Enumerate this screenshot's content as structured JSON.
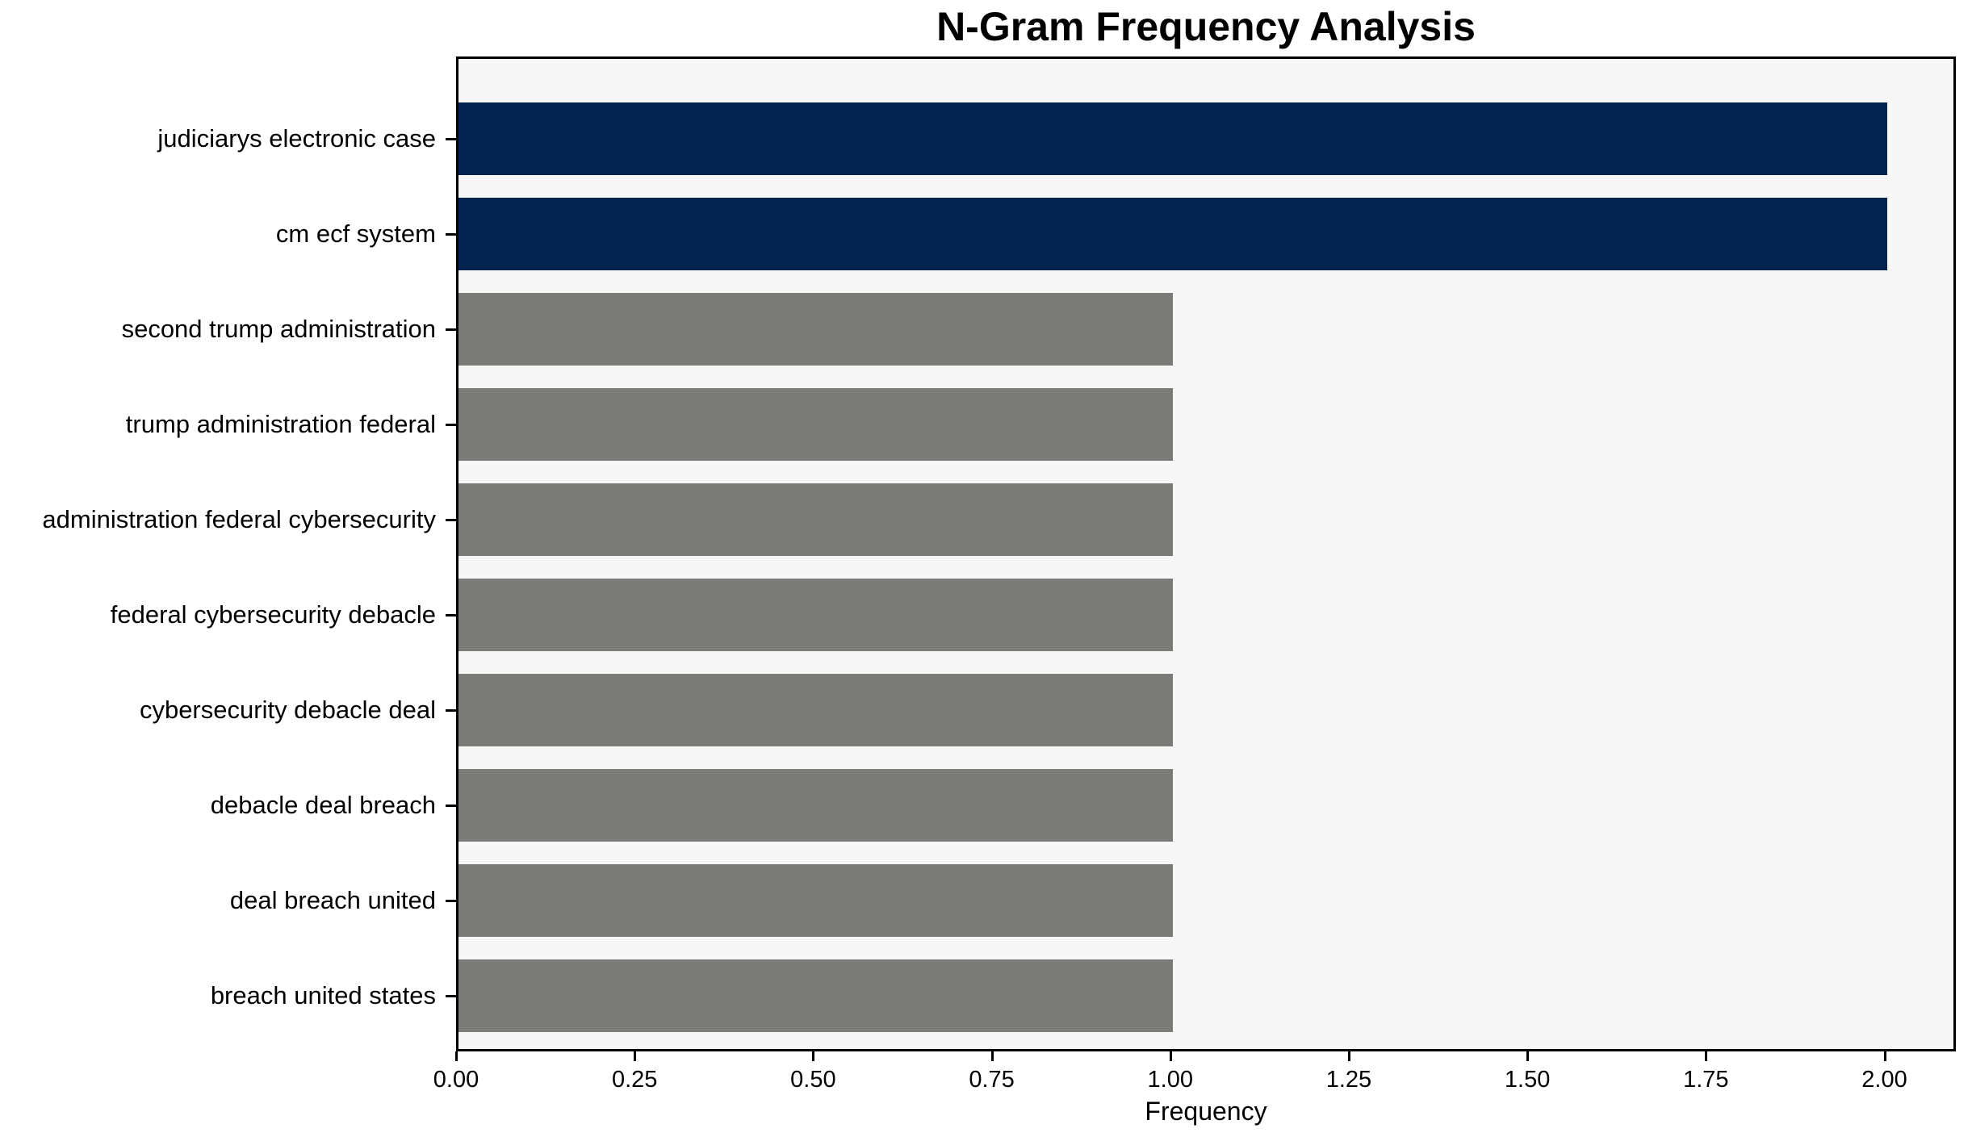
{
  "chart_data": {
    "type": "bar",
    "orientation": "horizontal",
    "title": "N-Gram Frequency Analysis",
    "xlabel": "Frequency",
    "ylabel": "",
    "categories": [
      "judiciarys electronic case",
      "cm ecf system",
      "second trump administration",
      "trump administration federal",
      "administration federal cybersecurity",
      "federal cybersecurity debacle",
      "cybersecurity debacle deal",
      "debacle deal breach",
      "deal breach united",
      "breach united states"
    ],
    "values": [
      2,
      2,
      1,
      1,
      1,
      1,
      1,
      1,
      1,
      1
    ],
    "bar_colors": [
      "#02234e",
      "#02234e",
      "#7b7b78",
      "#7b7b78",
      "#7b7b78",
      "#7b7b78",
      "#7b7b78",
      "#7b7b78",
      "#7b7b78",
      "#7b7b78"
    ],
    "xlim": [
      0,
      2.1
    ],
    "xtick_labels": [
      "0.00",
      "0.25",
      "0.50",
      "0.75",
      "1.00",
      "1.25",
      "1.50",
      "1.75",
      "2.00"
    ],
    "xtick_values": [
      0,
      0.25,
      0.5,
      0.75,
      1.0,
      1.25,
      1.5,
      1.75,
      2.0
    ],
    "grid": false,
    "legend": null,
    "colors": {
      "highlight": "#02234e",
      "default": "#7b7b78",
      "plot_background": "#f7f7f7",
      "figure_background": "#ffffff",
      "spine": "#000000",
      "text": "#000000"
    }
  }
}
